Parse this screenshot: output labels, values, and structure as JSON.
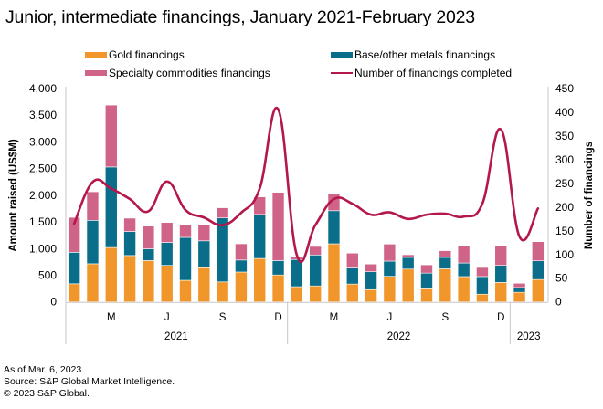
{
  "title": "Junior, intermediate financings, January 2021-February 2023",
  "legend": [
    {
      "label": "Gold financings",
      "color": "#F0962A",
      "kind": "bar"
    },
    {
      "label": "Base/other metals financings",
      "color": "#0A6E8A",
      "kind": "bar"
    },
    {
      "label": "Specialty commodities financings",
      "color": "#D06488",
      "kind": "bar"
    },
    {
      "label": "Number of financings completed",
      "color": "#B4174A",
      "kind": "line"
    }
  ],
  "footer": {
    "line1": "As of Mar. 6, 2023.",
    "line2": "Source: S&P Global Market Intelligence.",
    "line3": "© 2023 S&P Global."
  },
  "chart_data": {
    "type": "bar",
    "stacked": true,
    "title": "Junior, intermediate financings, January 2021-February 2023",
    "xlabel": "",
    "ylabel": "Amount raised (US$M)",
    "y2label": "Number of financings",
    "ylim": [
      0,
      4000
    ],
    "y2lim": [
      0,
      450
    ],
    "yticks": [
      "0",
      "500",
      "1,000",
      "1,500",
      "2,000",
      "2,500",
      "3,000",
      "3,500",
      "4,000"
    ],
    "yticks_values": [
      0,
      500,
      1000,
      1500,
      2000,
      2500,
      3000,
      3500,
      4000
    ],
    "y2ticks": [
      "0",
      "50",
      "100",
      "150",
      "200",
      "250",
      "300",
      "350",
      "400",
      "450"
    ],
    "y2ticks_values": [
      0,
      50,
      100,
      150,
      200,
      250,
      300,
      350,
      400,
      450
    ],
    "grid": false,
    "legend_position": "top",
    "categories": [
      "Jan 2021",
      "Feb 2021",
      "Mar 2021",
      "Apr 2021",
      "May 2021",
      "Jun 2021",
      "Jul 2021",
      "Aug 2021",
      "Sep 2021",
      "Oct 2021",
      "Nov 2021",
      "Dec 2021",
      "Jan 2022",
      "Feb 2022",
      "Mar 2022",
      "Apr 2022",
      "May 2022",
      "Jun 2022",
      "Jul 2022",
      "Aug 2022",
      "Sep 2022",
      "Oct 2022",
      "Nov 2022",
      "Dec 2022",
      "Jan 2023",
      "Feb 2023"
    ],
    "month_tick_labels": [
      {
        "index": 2,
        "label": "M"
      },
      {
        "index": 5,
        "label": "J"
      },
      {
        "index": 8,
        "label": "S"
      },
      {
        "index": 11,
        "label": "D"
      },
      {
        "index": 14,
        "label": "M"
      },
      {
        "index": 17,
        "label": "J"
      },
      {
        "index": 20,
        "label": "S"
      },
      {
        "index": 23,
        "label": "D"
      }
    ],
    "year_groups": [
      {
        "label": "2021",
        "start": 0,
        "end": 11
      },
      {
        "label": "2022",
        "start": 12,
        "end": 23
      },
      {
        "label": "2023",
        "start": 24,
        "end": 25
      }
    ],
    "series": [
      {
        "name": "Gold financings",
        "axis": "left",
        "kind": "bar",
        "color": "#F0962A",
        "values": [
          340,
          715,
          1020,
          870,
          775,
          685,
          405,
          640,
          375,
          560,
          815,
          505,
          285,
          300,
          1090,
          335,
          230,
          480,
          615,
          245,
          620,
          475,
          145,
          365,
          180,
          420
        ]
      },
      {
        "name": "Base/other metals financings",
        "axis": "left",
        "kind": "bar",
        "color": "#0A6E8A",
        "values": [
          590,
          815,
          1510,
          450,
          220,
          430,
          805,
          505,
          1200,
          225,
          825,
          270,
          510,
          580,
          620,
          300,
          335,
          285,
          220,
          295,
          215,
          255,
          330,
          320,
          90,
          350
        ]
      },
      {
        "name": "Specialty commodities financings",
        "axis": "left",
        "kind": "bar",
        "color": "#D06488",
        "values": [
          655,
          535,
          1160,
          250,
          425,
          375,
          230,
          305,
          190,
          305,
          330,
          1280,
          60,
          160,
          315,
          280,
          145,
          320,
          50,
          155,
          125,
          330,
          170,
          370,
          80,
          360
        ]
      },
      {
        "name": "Number of financings completed",
        "axis": "right",
        "kind": "line",
        "color": "#B4174A",
        "values": [
          165,
          253,
          239,
          217,
          191,
          254,
          194,
          178,
          162,
          188,
          239,
          406,
          99,
          162,
          217,
          207,
          184,
          189,
          175,
          184,
          186,
          180,
          207,
          364,
          138,
          197
        ]
      }
    ]
  }
}
